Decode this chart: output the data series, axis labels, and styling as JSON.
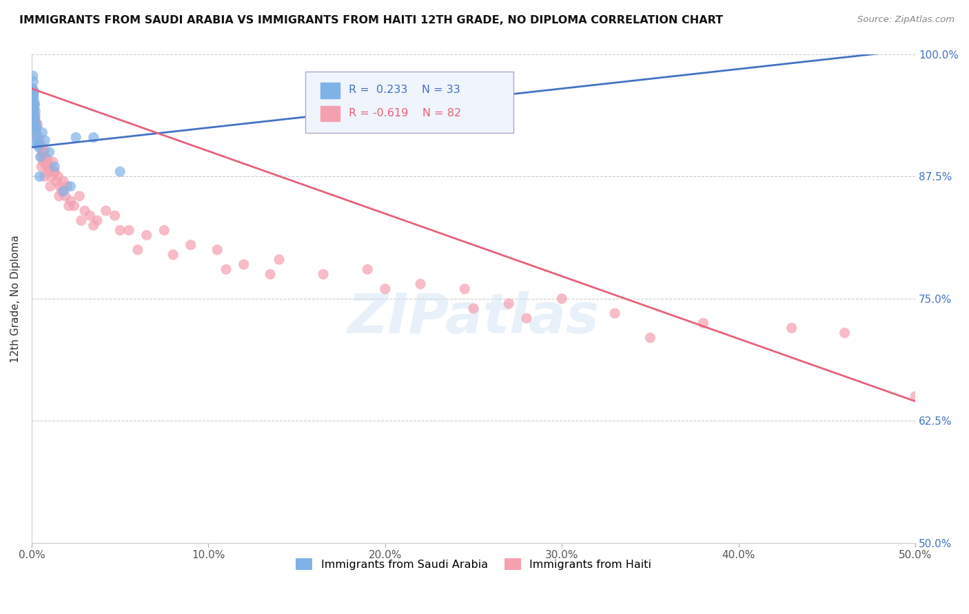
{
  "title": "IMMIGRANTS FROM SAUDI ARABIA VS IMMIGRANTS FROM HAITI 12TH GRADE, NO DIPLOMA CORRELATION CHART",
  "source": "Source: ZipAtlas.com",
  "ylabel": "12th Grade, No Diploma",
  "xlabel": "",
  "xlim": [
    0.0,
    50.0
  ],
  "ylim": [
    50.0,
    100.0
  ],
  "yticks": [
    50.0,
    62.5,
    75.0,
    87.5,
    100.0
  ],
  "xticks": [
    0.0,
    10.0,
    20.0,
    30.0,
    40.0,
    50.0
  ],
  "xtick_labels": [
    "0.0%",
    "10.0%",
    "20.0%",
    "30.0%",
    "40.0%",
    "50.0%"
  ],
  "ytick_labels": [
    "50.0%",
    "62.5%",
    "75.0%",
    "87.5%",
    "100.0%"
  ],
  "saudi_R": 0.233,
  "saudi_N": 33,
  "haiti_R": -0.619,
  "haiti_N": 82,
  "saudi_color": "#7fb3e8",
  "haiti_color": "#f4a0b0",
  "saudi_line_color": "#4472c4",
  "haiti_line_color": "#e8607a",
  "watermark": "ZIPatlas",
  "saudi_line_x0": 0.0,
  "saudi_line_y0": 90.5,
  "saudi_line_x1": 50.0,
  "saudi_line_y1": 100.5,
  "haiti_line_x0": 0.0,
  "haiti_line_y0": 96.5,
  "haiti_line_x1": 50.0,
  "haiti_line_y1": 64.5,
  "saudi_x": [
    0.05,
    0.07,
    0.08,
    0.09,
    0.1,
    0.11,
    0.12,
    0.13,
    0.14,
    0.15,
    0.16,
    0.17,
    0.18,
    0.19,
    0.2,
    0.22,
    0.24,
    0.26,
    0.28,
    0.3,
    0.35,
    0.4,
    0.5,
    0.6,
    0.75,
    1.0,
    1.3,
    1.8,
    2.5,
    3.5,
    5.0,
    2.2,
    0.45
  ],
  "saudi_y": [
    96.5,
    97.8,
    96.0,
    97.2,
    95.8,
    94.5,
    95.5,
    93.8,
    96.2,
    94.8,
    93.2,
    95.0,
    92.5,
    93.5,
    94.2,
    93.0,
    92.0,
    91.5,
    90.8,
    92.5,
    91.0,
    90.5,
    89.5,
    92.0,
    91.2,
    90.0,
    88.5,
    86.0,
    91.5,
    91.5,
    88.0,
    86.5,
    87.5
  ],
  "haiti_x": [
    0.05,
    0.08,
    0.1,
    0.12,
    0.14,
    0.16,
    0.18,
    0.2,
    0.22,
    0.25,
    0.28,
    0.3,
    0.33,
    0.36,
    0.4,
    0.44,
    0.48,
    0.52,
    0.56,
    0.6,
    0.65,
    0.7,
    0.75,
    0.8,
    0.85,
    0.9,
    0.95,
    1.0,
    1.1,
    1.2,
    1.3,
    1.4,
    1.5,
    1.6,
    1.7,
    1.8,
    1.9,
    2.0,
    2.2,
    2.4,
    2.7,
    3.0,
    3.3,
    3.7,
    4.2,
    4.7,
    5.5,
    6.5,
    7.5,
    9.0,
    10.5,
    12.0,
    14.0,
    16.5,
    19.0,
    22.0,
    24.5,
    27.0,
    30.0,
    0.55,
    0.63,
    0.72,
    1.05,
    1.25,
    1.55,
    2.1,
    2.8,
    3.5,
    5.0,
    6.0,
    8.0,
    11.0,
    13.5,
    20.0,
    25.0,
    33.0,
    38.0,
    43.0,
    46.0,
    50.0,
    28.0,
    35.0
  ],
  "haiti_y": [
    96.5,
    95.0,
    96.0,
    94.5,
    93.5,
    94.8,
    92.5,
    93.8,
    91.8,
    92.5,
    93.0,
    91.5,
    92.8,
    91.0,
    91.5,
    90.8,
    91.0,
    89.5,
    90.5,
    90.0,
    89.0,
    90.2,
    89.5,
    89.0,
    88.5,
    89.2,
    88.0,
    88.5,
    87.5,
    89.0,
    88.0,
    87.0,
    87.5,
    86.5,
    86.0,
    87.0,
    85.5,
    86.5,
    85.0,
    84.5,
    85.5,
    84.0,
    83.5,
    83.0,
    84.0,
    83.5,
    82.0,
    81.5,
    82.0,
    80.5,
    80.0,
    78.5,
    79.0,
    77.5,
    78.0,
    76.5,
    76.0,
    74.5,
    75.0,
    88.5,
    90.0,
    87.5,
    86.5,
    88.0,
    85.5,
    84.5,
    83.0,
    82.5,
    82.0,
    80.0,
    79.5,
    78.0,
    77.5,
    76.0,
    74.0,
    73.5,
    72.5,
    72.0,
    71.5,
    65.0,
    73.0,
    71.0
  ]
}
